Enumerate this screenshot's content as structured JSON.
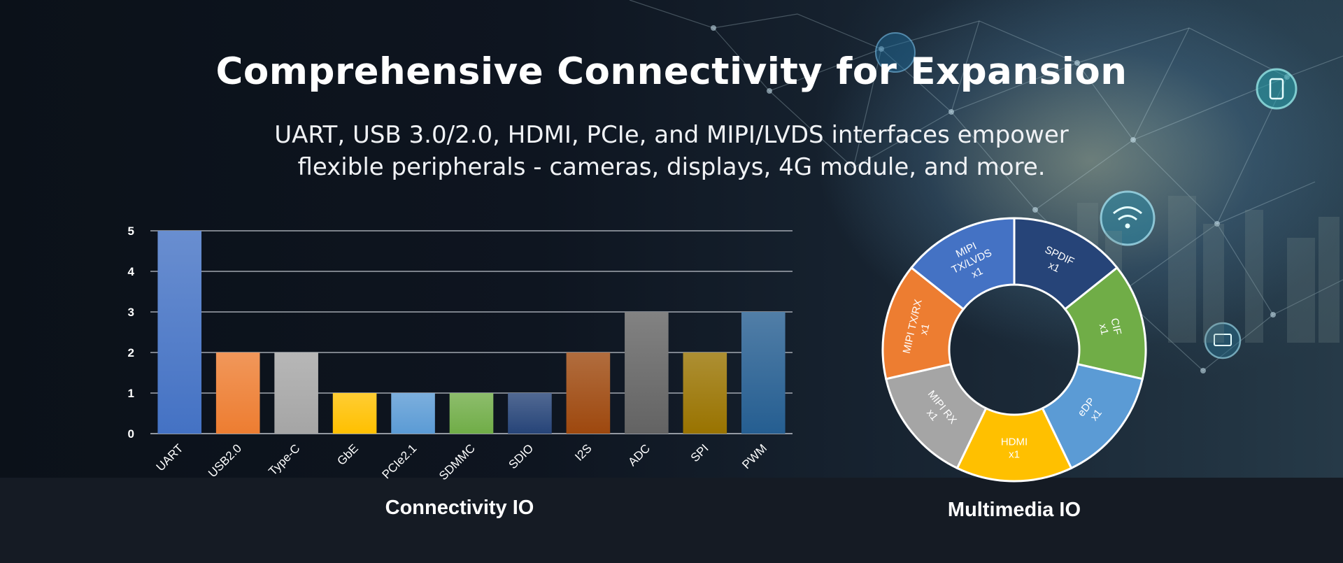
{
  "header": {
    "title": "Comprehensive Connectivity for Expansion",
    "subtitle_line1": "UART, USB 3.0/2.0, HDMI, PCIe, and MIPI/LVDS interfaces empower",
    "subtitle_line2": "flexible peripherals - cameras, displays, 4G module, and more."
  },
  "chart_data": [
    {
      "type": "bar",
      "title": "Connectivity IO",
      "xlabel": "",
      "ylabel": "",
      "ylim": [
        0,
        5
      ],
      "yticks": [
        0,
        1,
        2,
        3,
        4,
        5
      ],
      "grid": true,
      "categories": [
        "UART",
        "USB2.0",
        "Type-C",
        "GbE",
        "PCIe2.1",
        "SDMMC",
        "SDIO",
        "I2S",
        "ADC",
        "SPI",
        "PWM"
      ],
      "values": [
        5,
        2,
        2,
        1,
        1,
        1,
        1,
        2,
        3,
        2,
        3
      ],
      "colors": [
        "#4472c4",
        "#ed7d31",
        "#a5a5a5",
        "#ffc000",
        "#5b9bd5",
        "#70ad47",
        "#264478",
        "#9e480e",
        "#636363",
        "#997300",
        "#255e91"
      ]
    },
    {
      "type": "pie",
      "title": "Multimedia IO",
      "style": "donut",
      "categories": [
        "SPDIF",
        "CIF",
        "eDP",
        "HDMI",
        "MIPI RX",
        "MIPI TX/RX",
        "MIPI TX/LVDS"
      ],
      "values": [
        1,
        1,
        1,
        1,
        1,
        1,
        1
      ],
      "labels": [
        "SPDIF x1",
        "CIF x1",
        "eDP x1",
        "HDMI x1",
        "MIPI RX x1",
        "MIPI TX/RX x1",
        "MIPI TX/LVDS x1"
      ],
      "label_lines": [
        [
          "SPDIF",
          "x1"
        ],
        [
          "CIF",
          "x1"
        ],
        [
          "eDP",
          "x1"
        ],
        [
          "HDMI",
          "x1"
        ],
        [
          "MIPI RX",
          "x1"
        ],
        [
          "MIPI TX/RX",
          "x1"
        ],
        [
          "MIPI",
          "TX/LVDS",
          "x1"
        ]
      ],
      "colors": [
        "#264478",
        "#70ad47",
        "#5b9bd5",
        "#ffc000",
        "#a5a5a5",
        "#ed7d31",
        "#4472c4"
      ]
    }
  ]
}
